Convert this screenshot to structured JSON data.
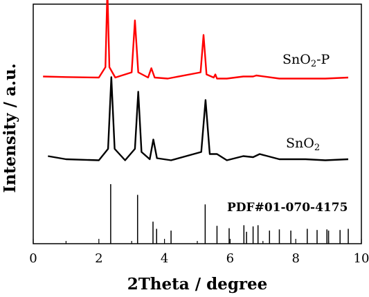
{
  "chart_data": {
    "type": "line",
    "title": "",
    "xlabel": "2Theta / degree",
    "ylabel": "Intensity / a.u.",
    "xlim": [
      0,
      10
    ],
    "xticks": [
      "0",
      "2",
      "4",
      "6",
      "8",
      "10"
    ],
    "grid": false,
    "series": [
      {
        "name": "SnO2-P",
        "color": "#ff0000",
        "offset": 1.0,
        "x": [
          0.3,
          1.0,
          2.0,
          2.2,
          2.26,
          2.32,
          2.5,
          3.0,
          3.1,
          3.2,
          3.5,
          3.6,
          3.7,
          4.1,
          5.1,
          5.19,
          5.28,
          5.5,
          5.55,
          5.6,
          5.9,
          6.4,
          6.7,
          6.8,
          7.5,
          8.3,
          8.9,
          9.6
        ],
        "y": [
          0.06,
          0.055,
          0.05,
          0.15,
          0.9,
          0.15,
          0.05,
          0.1,
          0.6,
          0.1,
          0.05,
          0.14,
          0.05,
          0.04,
          0.1,
          0.46,
          0.08,
          0.05,
          0.08,
          0.04,
          0.04,
          0.06,
          0.06,
          0.07,
          0.04,
          0.04,
          0.04,
          0.05
        ]
      },
      {
        "name": "SnO2",
        "color": "#000000",
        "offset": 0.5,
        "x": [
          0.45,
          1.0,
          2.0,
          2.28,
          2.38,
          2.48,
          2.8,
          3.1,
          3.2,
          3.3,
          3.55,
          3.66,
          3.77,
          4.2,
          5.12,
          5.25,
          5.38,
          5.6,
          5.9,
          6.4,
          6.7,
          6.9,
          7.5,
          8.3,
          8.9,
          9.6
        ],
        "y": [
          0.08,
          0.05,
          0.04,
          0.15,
          0.84,
          0.15,
          0.04,
          0.15,
          0.7,
          0.12,
          0.05,
          0.24,
          0.06,
          0.04,
          0.12,
          0.62,
          0.1,
          0.1,
          0.04,
          0.08,
          0.07,
          0.1,
          0.05,
          0.05,
          0.04,
          0.05
        ]
      }
    ],
    "reference": {
      "name": "PDF#01-070-4175",
      "positions": [
        2.36,
        3.18,
        3.65,
        3.76,
        4.2,
        5.24,
        5.6,
        5.97,
        6.42,
        6.5,
        6.7,
        6.85,
        7.2,
        7.5,
        7.85,
        8.35,
        8.65,
        8.95,
        9.0,
        9.35,
        9.6
      ],
      "heights": [
        1.0,
        0.82,
        0.37,
        0.25,
        0.22,
        0.66,
        0.3,
        0.26,
        0.31,
        0.2,
        0.29,
        0.31,
        0.22,
        0.24,
        0.22,
        0.25,
        0.23,
        0.24,
        0.22,
        0.23,
        0.25
      ]
    },
    "annotations": [
      {
        "text": "SnO2-P",
        "main": "SnO",
        "sub": "2",
        "suffix": "-P",
        "series": "SnO2-P"
      },
      {
        "text": "SnO2",
        "main": "SnO",
        "sub": "2",
        "suffix": "",
        "series": "SnO2"
      },
      {
        "text": "PDF#01-070-4175",
        "series": "reference"
      }
    ]
  }
}
